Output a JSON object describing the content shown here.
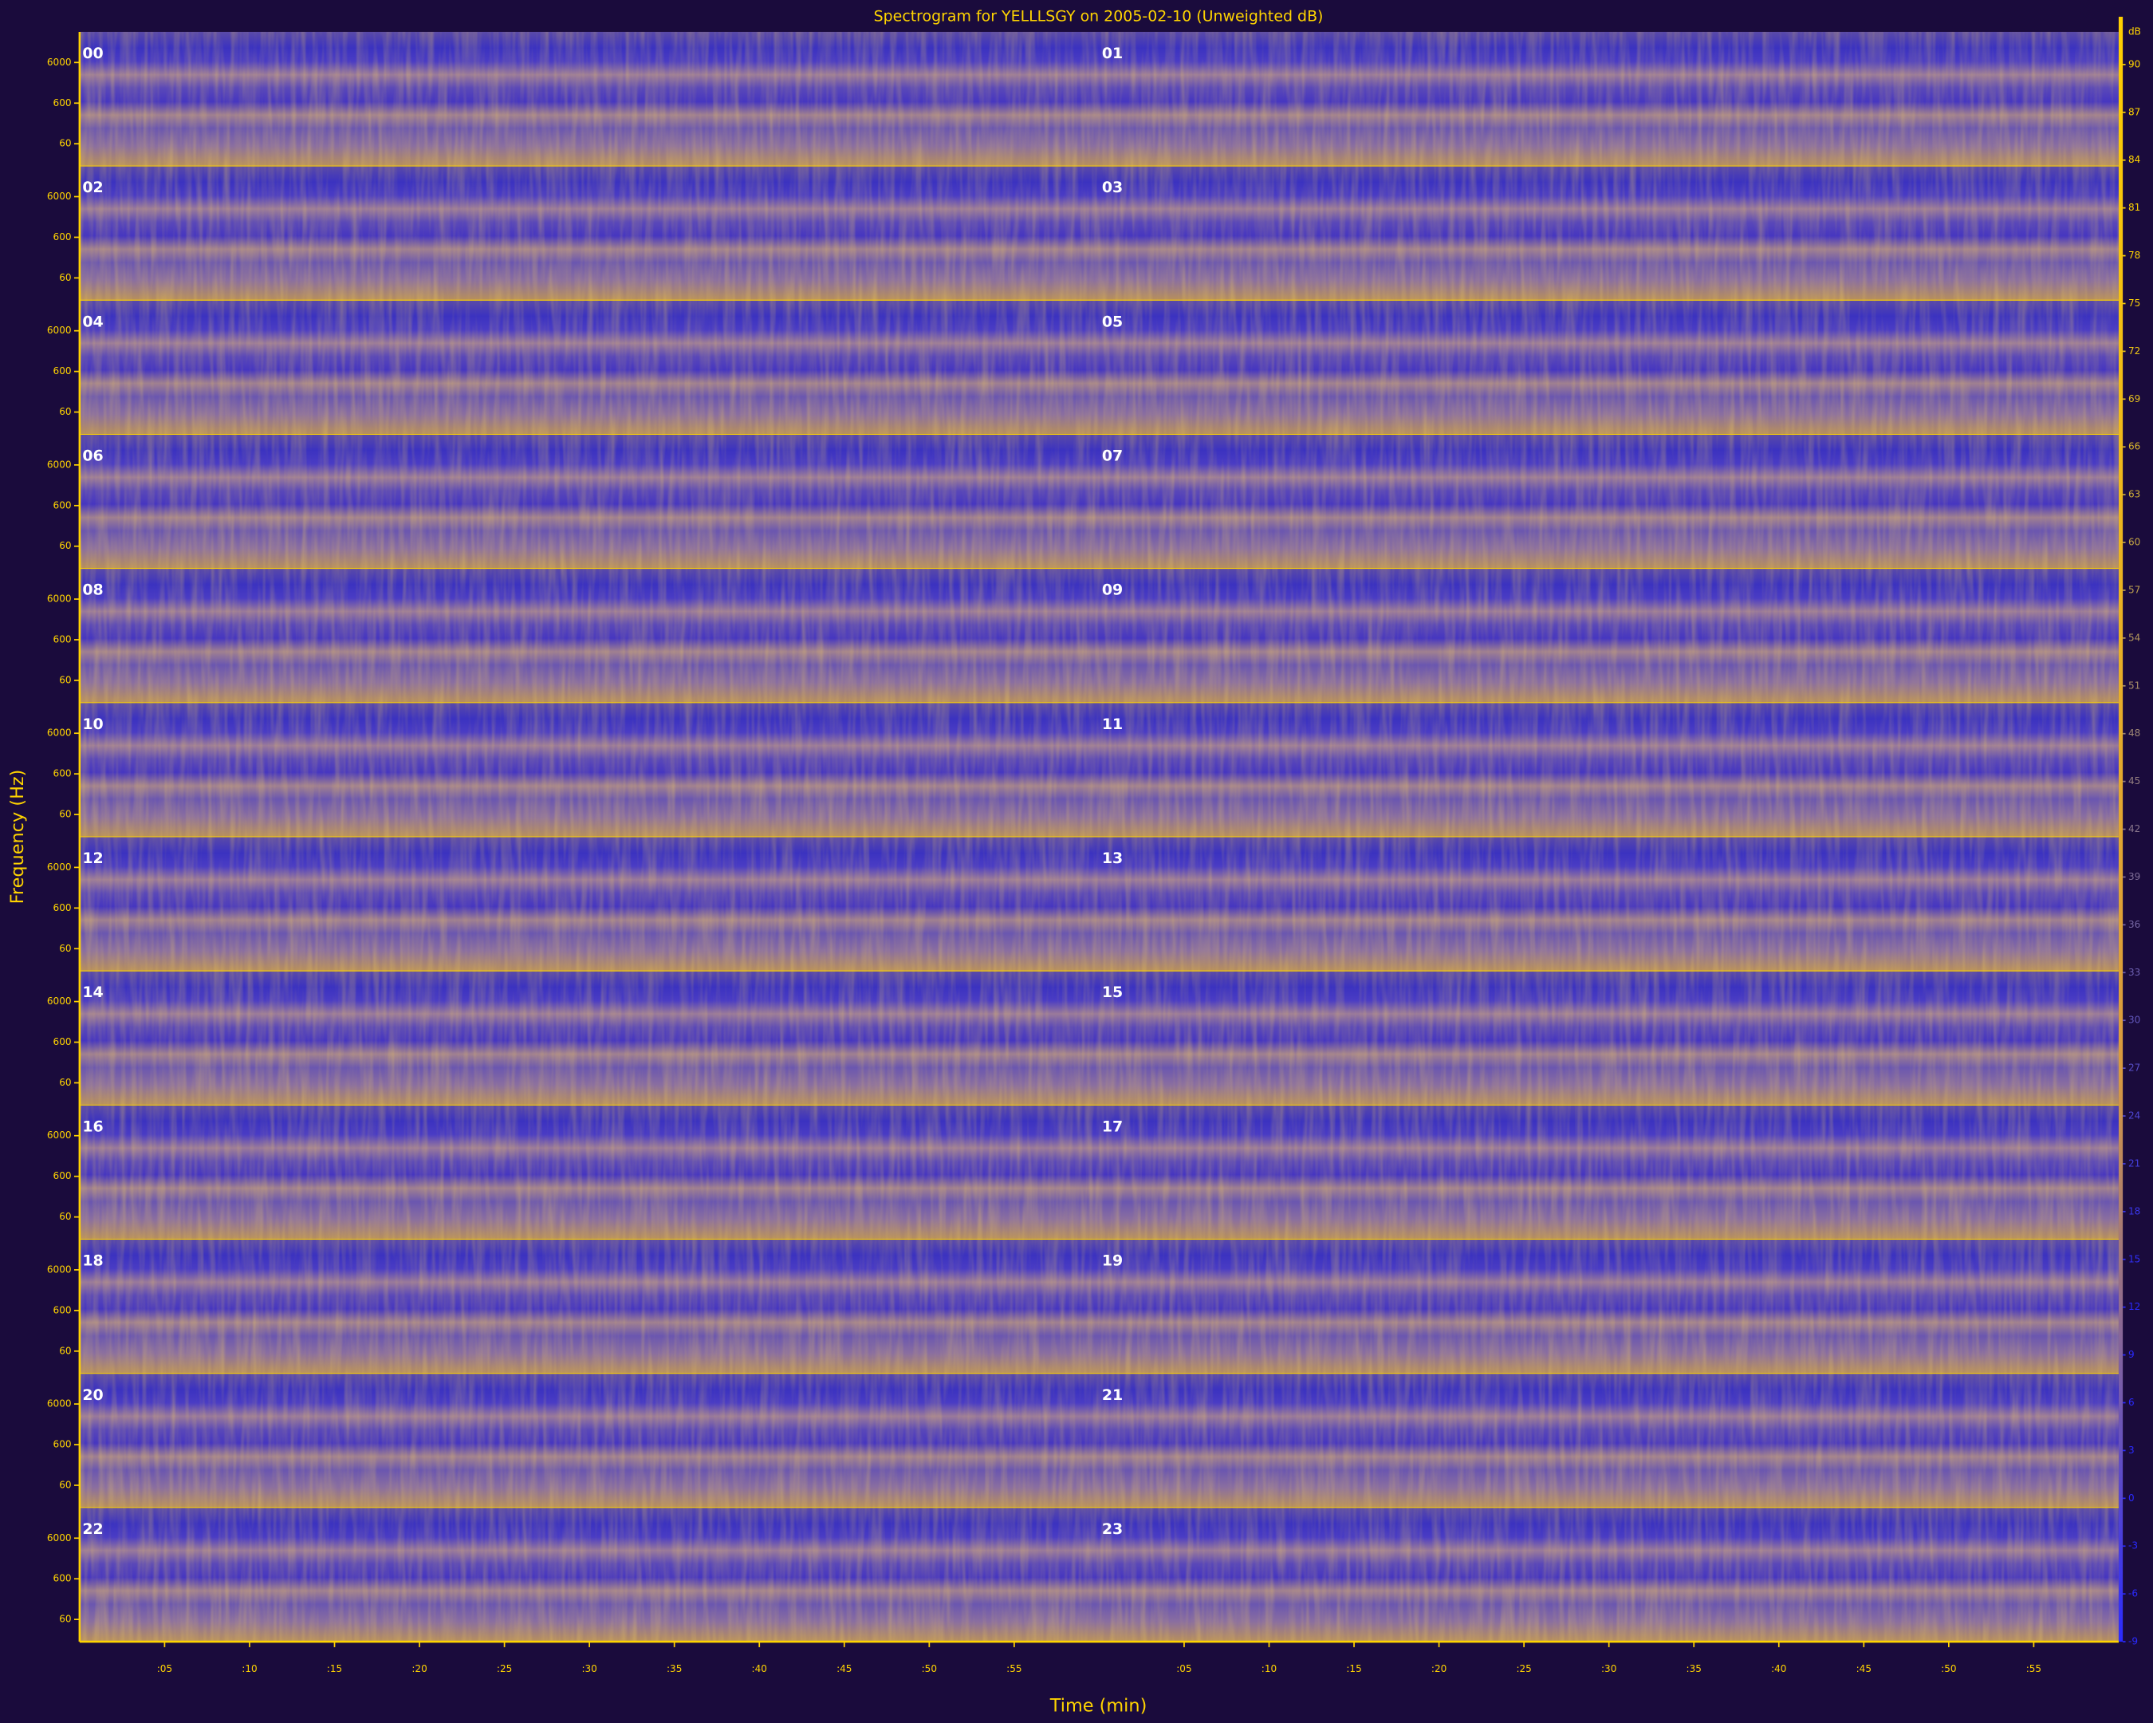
{
  "chart_data": {
    "type": "spectrogram",
    "title": "Spectrogram for YELLLSGY on 2005-02-10 (Unweighted dB)",
    "y_axis_label": "Frequency (Hz)",
    "x_axis_label": "Time (min)",
    "hours": [
      "00",
      "01",
      "02",
      "03",
      "04",
      "05",
      "06",
      "07",
      "08",
      "09",
      "10",
      "11",
      "12",
      "13",
      "14",
      "15",
      "16",
      "17",
      "18",
      "19",
      "20",
      "21",
      "22",
      "23"
    ],
    "log_y": true,
    "ylim": [
      17,
      34000
    ],
    "yticks": [
      60,
      600,
      6000
    ],
    "xlim": [
      0,
      60
    ],
    "xticks": [
      {
        "value": 5,
        "label": ":05"
      },
      {
        "value": 10,
        "label": ":10"
      },
      {
        "value": 15,
        "label": ":15"
      },
      {
        "value": 20,
        "label": ":20"
      },
      {
        "value": 25,
        "label": ":25"
      },
      {
        "value": 30,
        "label": ":30"
      },
      {
        "value": 35,
        "label": ":35"
      },
      {
        "value": 40,
        "label": ":40"
      },
      {
        "value": 45,
        "label": ":45"
      },
      {
        "value": 50,
        "label": ":50"
      },
      {
        "value": 55,
        "label": ":55"
      }
    ],
    "colorbar": {
      "unit": "dB",
      "clim": [
        -9,
        93
      ],
      "ticks": [
        90,
        87,
        84,
        81,
        78,
        75,
        72,
        69,
        66,
        63,
        60,
        57,
        54,
        51,
        48,
        45,
        42,
        39,
        36,
        33,
        30,
        27,
        24,
        21,
        18,
        15,
        12,
        9,
        6,
        3,
        0,
        -3,
        -6,
        -9
      ]
    }
  }
}
